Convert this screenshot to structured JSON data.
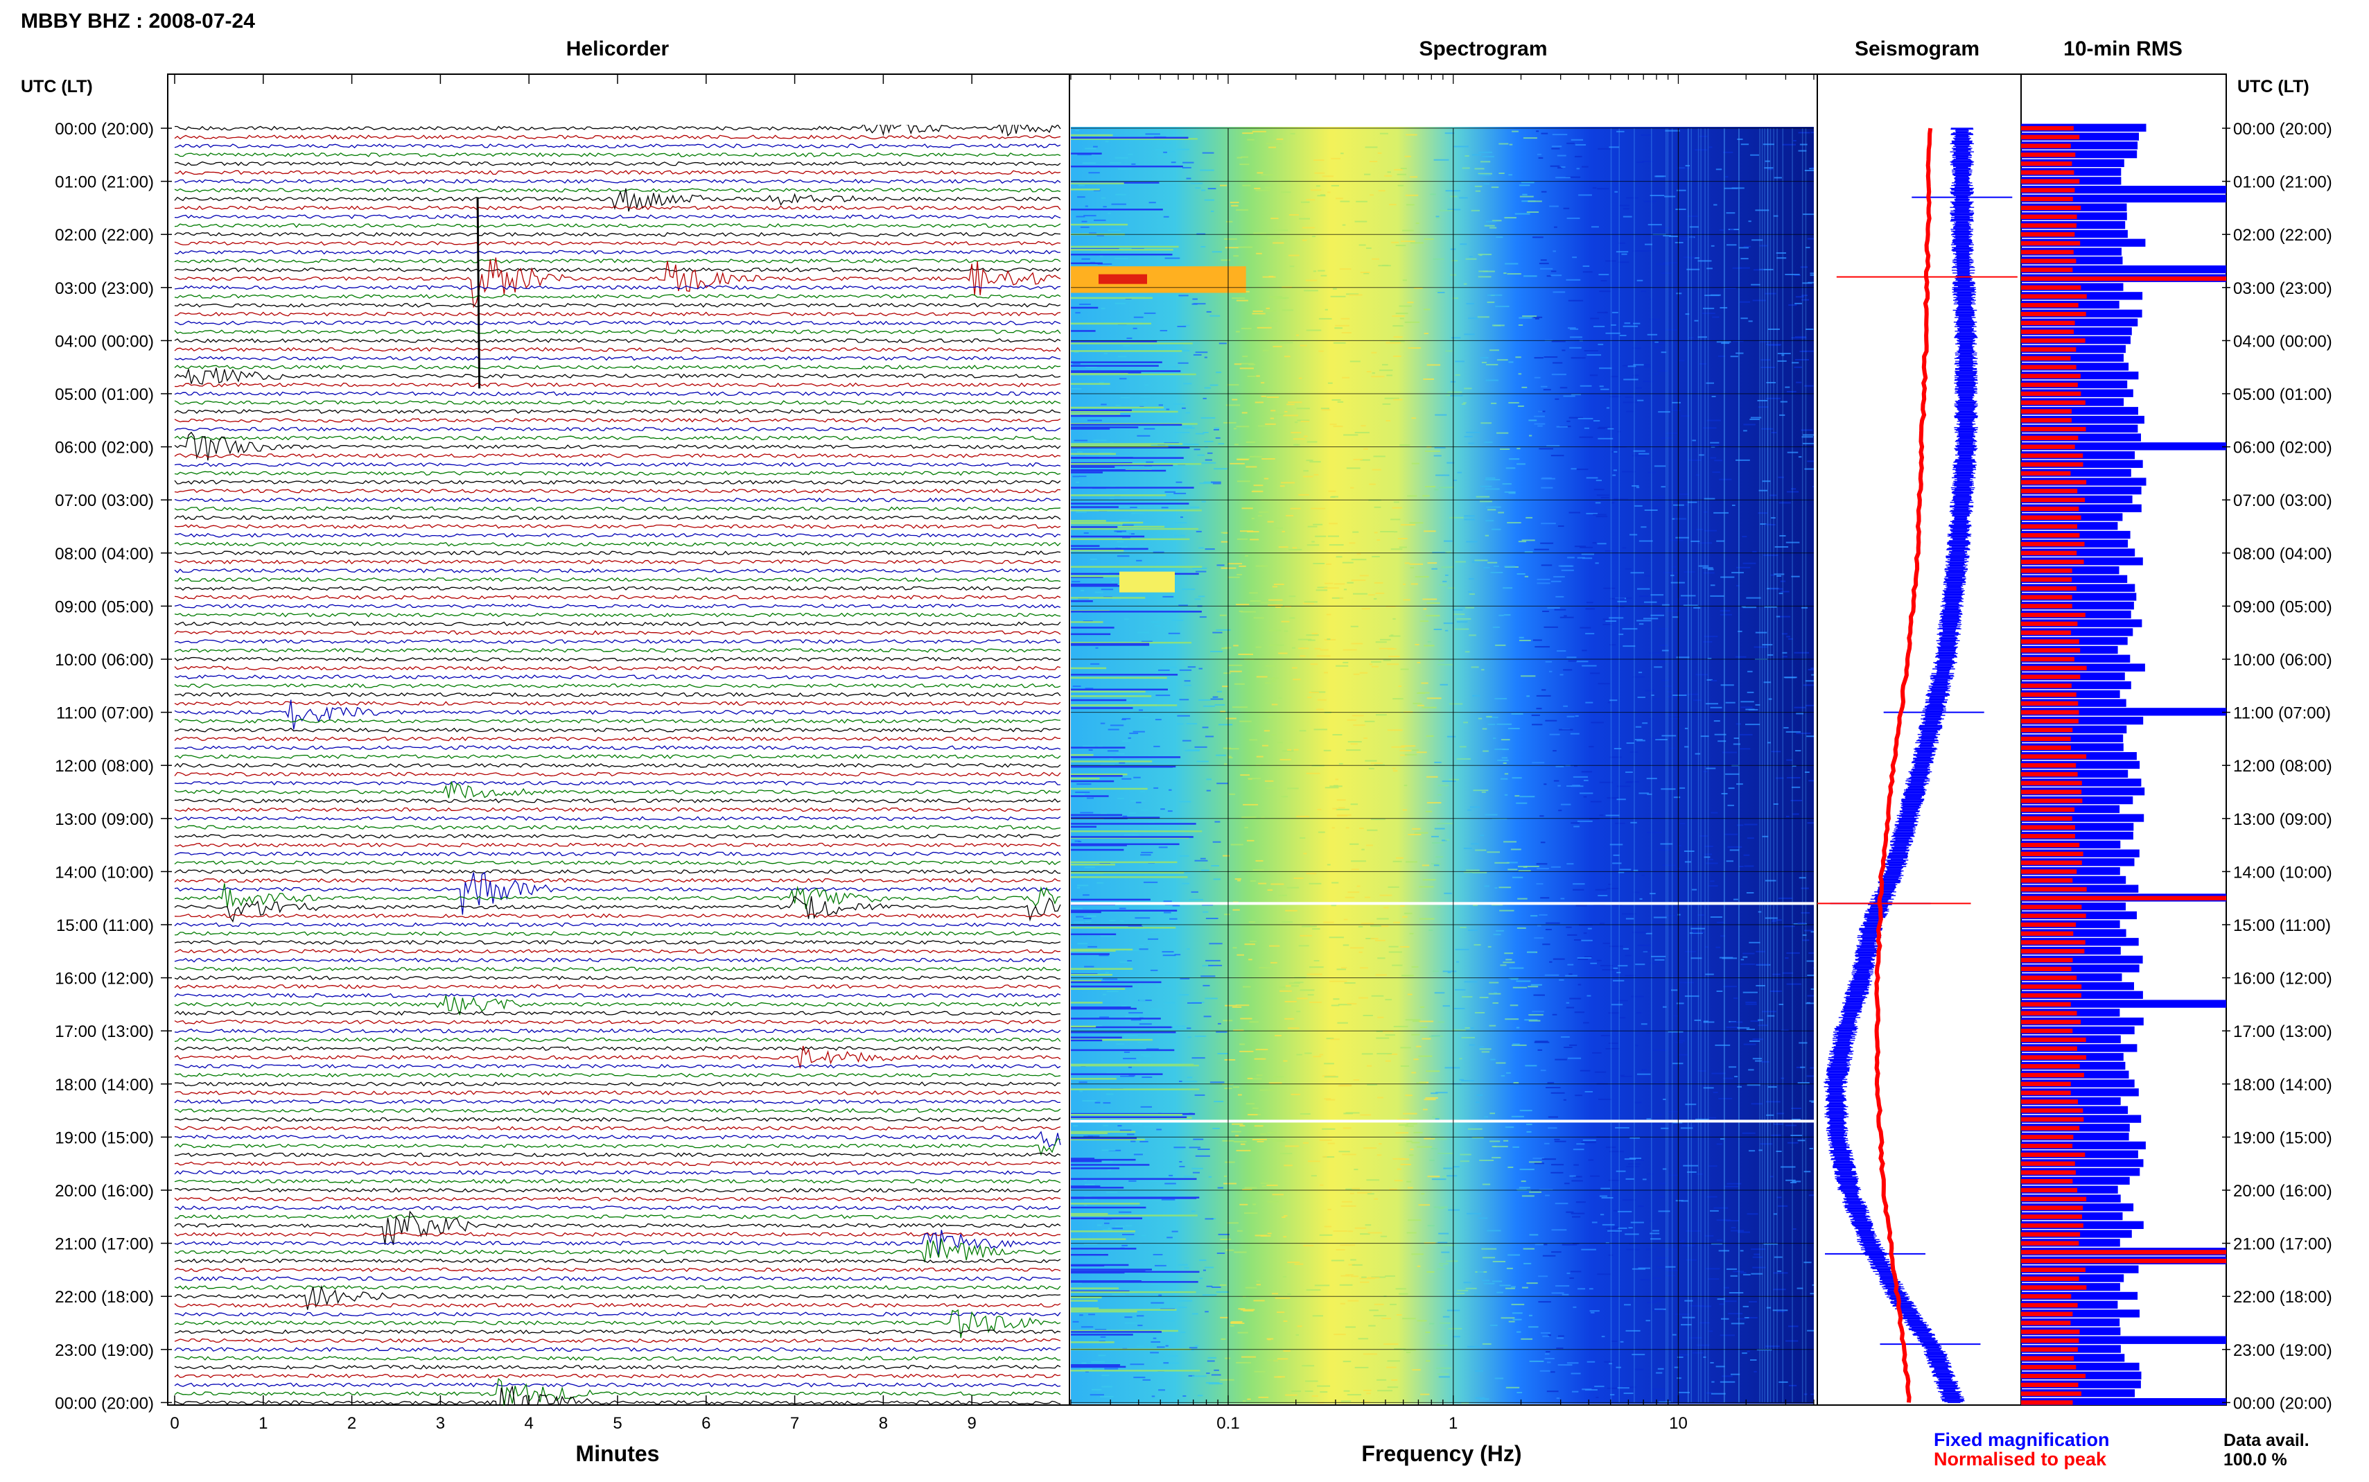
{
  "header": {
    "station_title": "MBBY BHZ : 2008-07-24",
    "time_axis_title_left": "UTC (LT)",
    "time_axis_title_right": "UTC (LT)"
  },
  "panels": {
    "helicorder": "Helicorder",
    "spectrogram": "Spectrogram",
    "seismogram": "Seismogram",
    "rms": "10-min RMS"
  },
  "footer": {
    "helicorder_xlabel": "Minutes",
    "spectrogram_xlabel": "Frequency (Hz)",
    "legend_fixed": "Fixed magnification",
    "legend_normalised": "Normalised to peak",
    "data_avail_label": "Data avail.",
    "data_avail_value": "100.0 %"
  },
  "colors": {
    "trace_cycle": [
      "#000000",
      "#b30000",
      "#0000b3",
      "#007a00"
    ],
    "fixed": "#0000ff",
    "normalised": "#ff0000",
    "spectrogram_low": "#00008c",
    "spectrogram_high": "#ffff00"
  },
  "chart_data": [
    {
      "type": "line",
      "panel": "helicorder",
      "xlabel": "Minutes",
      "xlim": [
        0,
        10
      ],
      "x_ticks": [
        "0",
        "1",
        "2",
        "3",
        "4",
        "5",
        "6",
        "7",
        "8",
        "9"
      ],
      "rows_per_hour": 6,
      "hour_labels": [
        "00:00 (20:00)",
        "01:00 (21:00)",
        "02:00 (22:00)",
        "03:00 (23:00)",
        "04:00 (00:00)",
        "05:00 (01:00)",
        "06:00 (02:00)",
        "07:00 (03:00)",
        "08:00 (04:00)",
        "09:00 (05:00)",
        "10:00 (06:00)",
        "11:00 (07:00)",
        "12:00 (08:00)",
        "13:00 (09:00)",
        "14:00 (10:00)",
        "15:00 (11:00)",
        "16:00 (12:00)",
        "17:00 (13:00)",
        "18:00 (14:00)",
        "19:00 (15:00)",
        "20:00 (16:00)",
        "21:00 (17:00)",
        "22:00 (18:00)",
        "23:00 (19:00)",
        "00:00 (20:00)"
      ],
      "events": [
        {
          "hour": 0.0,
          "minute": 7.8,
          "amplitude": 1.2
        },
        {
          "hour": 0.0,
          "minute": 9.3,
          "amplitude": 1.0
        },
        {
          "hour": 1.3,
          "minute": 5.0,
          "amplitude": 1.5
        },
        {
          "hour": 1.3,
          "minute": 6.7,
          "amplitude": 1.0
        },
        {
          "hour": 2.8,
          "minute": 3.4,
          "amplitude": 3.5
        },
        {
          "hour": 2.8,
          "minute": 5.6,
          "amplitude": 1.8
        },
        {
          "hour": 2.8,
          "minute": 9.0,
          "amplitude": 2.0
        },
        {
          "hour": 4.7,
          "minute": 0.2,
          "amplitude": 1.2
        },
        {
          "hour": 6.0,
          "minute": 0.2,
          "amplitude": 1.8
        },
        {
          "hour": 11.0,
          "minute": 1.3,
          "amplitude": 1.8
        },
        {
          "hour": 12.5,
          "minute": 3.1,
          "amplitude": 1.0
        },
        {
          "hour": 14.3,
          "minute": 3.3,
          "amplitude": 2.5
        },
        {
          "hour": 14.6,
          "minute": 0.6,
          "amplitude": 1.5
        },
        {
          "hour": 14.6,
          "minute": 7.0,
          "amplitude": 1.5
        },
        {
          "hour": 14.6,
          "minute": 9.7,
          "amplitude": 1.2
        },
        {
          "hour": 16.5,
          "minute": 3.0,
          "amplitude": 1.5
        },
        {
          "hour": 17.5,
          "minute": 7.1,
          "amplitude": 1.2
        },
        {
          "hour": 19.1,
          "minute": 9.8,
          "amplitude": 1.0
        },
        {
          "hour": 20.7,
          "minute": 2.4,
          "amplitude": 3.0
        },
        {
          "hour": 21.1,
          "minute": 8.5,
          "amplitude": 1.8
        },
        {
          "hour": 22.0,
          "minute": 1.5,
          "amplitude": 1.2
        },
        {
          "hour": 22.5,
          "minute": 8.8,
          "amplitude": 2.0
        },
        {
          "hour": 23.9,
          "minute": 3.7,
          "amplitude": 2.0
        }
      ]
    },
    {
      "type": "heatmap",
      "panel": "spectrogram",
      "xlabel": "Frequency (Hz)",
      "x_scale": "log",
      "xlim": [
        0.02,
        40
      ],
      "x_ticks": [
        "0.1",
        "1",
        "10"
      ],
      "peak_frequency_hz": 0.35,
      "peak_bands": [
        {
          "hour_start": 2.6,
          "hour_end": 3.1,
          "freq_hz": 0.05
        }
      ]
    },
    {
      "type": "line",
      "panel": "seismogram",
      "series": [
        {
          "name": "Fixed magnification",
          "hours": [
            0,
            2,
            4,
            6,
            8,
            10,
            12,
            13,
            14,
            15,
            16,
            17,
            18,
            19,
            20,
            21,
            22,
            23,
            24
          ],
          "values": [
            0.72,
            0.72,
            0.74,
            0.74,
            0.7,
            0.64,
            0.52,
            0.45,
            0.38,
            0.27,
            0.22,
            0.14,
            0.09,
            0.1,
            0.16,
            0.26,
            0.4,
            0.58,
            0.68
          ]
        },
        {
          "name": "Normalised to peak",
          "hours": [
            0,
            2,
            4,
            6,
            8,
            10,
            12,
            14,
            16,
            18,
            20,
            22,
            24
          ],
          "values": [
            0.56,
            0.55,
            0.54,
            0.52,
            0.5,
            0.45,
            0.38,
            0.32,
            0.3,
            0.3,
            0.33,
            0.4,
            0.46
          ]
        }
      ]
    },
    {
      "type": "bar",
      "panel": "10-min RMS",
      "orientation": "horizontal",
      "series": [
        {
          "name": "Fixed magnification",
          "base": 0.54,
          "spikes_hours": [
            1.25,
            2.6,
            2.9,
            6.0,
            11.05,
            14.55,
            16.5,
            21.25,
            22.85,
            23.95
          ]
        },
        {
          "name": "Normalised to peak",
          "base": 0.28,
          "spikes_hours": [
            2.9,
            14.55,
            21.25
          ]
        }
      ]
    }
  ]
}
